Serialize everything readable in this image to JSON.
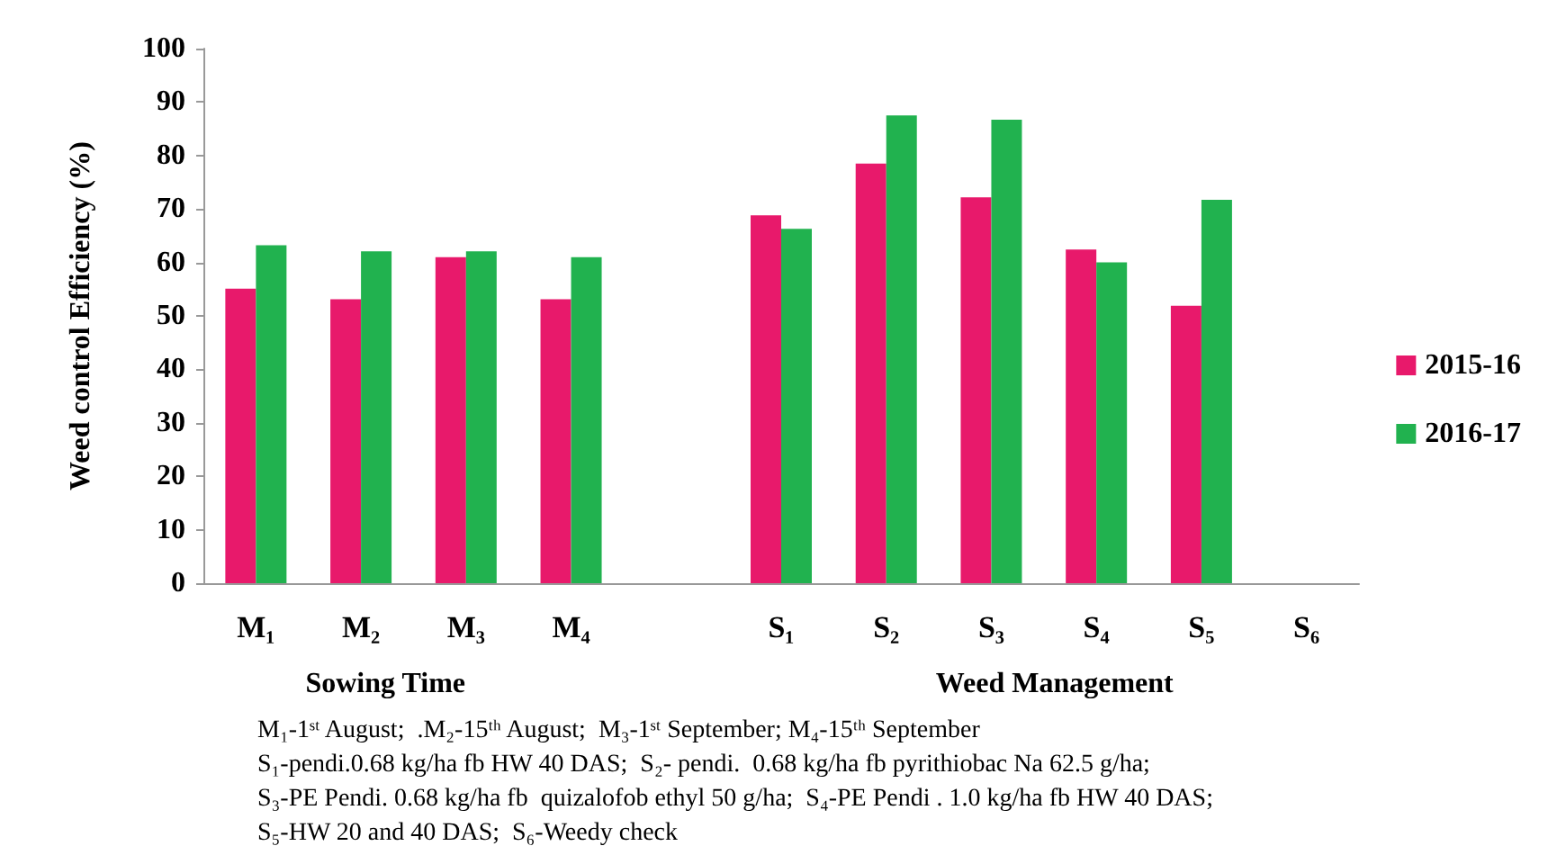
{
  "chart_data": {
    "type": "bar",
    "ylabel": "Weed control Efficiency (%)",
    "categories": [
      "M₁",
      "M₂",
      "M₃",
      "M₄",
      null,
      "S₁",
      "S₂",
      "S₃",
      "S₄",
      "S₅",
      "S₆"
    ],
    "series": [
      {
        "name": "2015-16",
        "color": "#e8196b",
        "values": [
          55.1,
          53.1,
          61.0,
          53.1,
          null,
          68.8,
          78.5,
          72.2,
          62.4,
          51.9,
          0
        ]
      },
      {
        "name": "2016-17",
        "color": "#21b24f",
        "values": [
          63.2,
          62.1,
          62.1,
          61.0,
          null,
          66.3,
          87.5,
          86.7,
          60.0,
          71.7,
          0
        ]
      }
    ],
    "ylim": [
      0,
      100
    ],
    "yticks": [
      0,
      10,
      20,
      30,
      40,
      50,
      60,
      70,
      80,
      90,
      100
    ],
    "grid": false,
    "legend": "right",
    "annotations": [
      "Sowing Time",
      "Weed Management",
      "M₁-1ˢᵗ August;  .M₂-15ᵗʰ August;  M₃-1ˢᵗ September; M₄-15ᵗʰ September",
      "S₁-pendi.0.68 kg/ha fb HW 40 DAS;  S₂- pendi.  0.68 kg/ha fb pyrithiobac Na 62.5 g/ha;",
      "S₃-PE Pendi. 0.68 kg/ha fb  quizalofob ethyl 50 g/ha;  S₄-PE Pendi . 1.0 kg/ha fb HW 40 DAS;",
      "S₅-HW 20 and 40 DAS;  S₆-Weedy check"
    ]
  }
}
